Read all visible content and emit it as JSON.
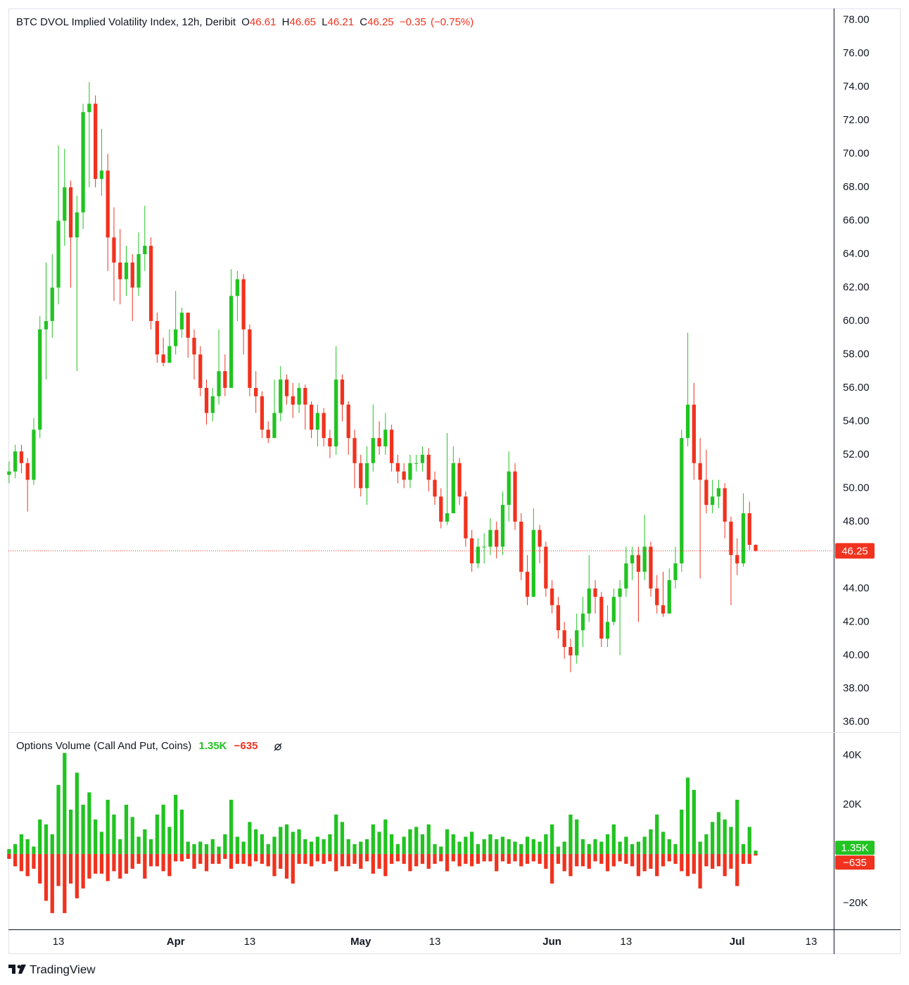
{
  "brand": "TradingView",
  "chart_data": {
    "type": "candlestick",
    "title": "BTC DVOL Implied Volatility Index, 12h, Deribit",
    "ohlc_labels": [
      "O",
      "H",
      "L",
      "C"
    ],
    "change": {
      "value": -0.35,
      "label": "−0.35"
    },
    "change_pct": {
      "value": -0.75,
      "label": "(−0.75%)"
    },
    "up_color": "#22c322",
    "down_color": "#f0321e",
    "last_price_line": true,
    "grid": false,
    "open": [
      50.8,
      51.0,
      52.2,
      51.5,
      50.5,
      53.5,
      59.5,
      60.0,
      62.0,
      66.0,
      68.0,
      65.0,
      66.5,
      72.5,
      73.0,
      68.5,
      69.0,
      65.0,
      63.5,
      62.5,
      63.5,
      62.0,
      64.0,
      64.5,
      60.0,
      58.0,
      57.5,
      58.5,
      59.5,
      60.5,
      59.0,
      58.0,
      56.0,
      54.5,
      55.5,
      57.0,
      56.0,
      61.5,
      62.5,
      59.5,
      56.0,
      55.5,
      53.5,
      53.0,
      54.5,
      56.5,
      55.5,
      55.0,
      56.0,
      55.0,
      53.5,
      54.5,
      53.0,
      52.5,
      56.5,
      55.0,
      53.0,
      51.5,
      50.0,
      51.5,
      53.0,
      52.5,
      53.5,
      51.5,
      51.0,
      50.5,
      51.5,
      51.5,
      52.0,
      50.5,
      49.5,
      48.0,
      48.5,
      51.5,
      49.5,
      47.0,
      45.5,
      46.5,
      46.5,
      47.5,
      46.5,
      49.0,
      51.0,
      48.0,
      45.0,
      43.5,
      47.5,
      46.5,
      44.0,
      43.0,
      41.5,
      40.5,
      40.0,
      41.5,
      42.5,
      44.0,
      43.5,
      41.0,
      42.0,
      43.5,
      44.0,
      45.5,
      46.0,
      45.0,
      46.5,
      44.0,
      43.0,
      42.5,
      44.5,
      45.5,
      53.0,
      55.0,
      51.5,
      50.5,
      49.0,
      49.5,
      50.0,
      48.0,
      46.0,
      45.5,
      48.5,
      46.61
    ],
    "high": [
      51.6,
      52.6,
      52.6,
      51.8,
      54.2,
      60.3,
      63.5,
      64.0,
      70.5,
      70.3,
      68.4,
      67.5,
      73.0,
      74.3,
      73.5,
      71.5,
      70.0,
      66.8,
      65.5,
      64.5,
      64.0,
      65.3,
      66.9,
      65.0,
      60.5,
      59.0,
      59.5,
      61.8,
      60.8,
      60.5,
      59.5,
      58.5,
      56.5,
      56.0,
      59.5,
      58.0,
      63.1,
      63.0,
      62.8,
      59.8,
      57.0,
      55.8,
      54.0,
      56.5,
      57.3,
      56.8,
      56.3,
      56.3,
      56.2,
      55.2,
      55.0,
      54.8,
      53.5,
      58.5,
      56.8,
      55.2,
      53.5,
      52.0,
      52.5,
      55.0,
      54.0,
      54.5,
      53.8,
      52.0,
      51.5,
      52.0,
      52.0,
      52.5,
      52.4,
      51.0,
      50.0,
      53.3,
      52.5,
      51.8,
      49.8,
      47.5,
      47.0,
      47.3,
      48.2,
      48.0,
      49.8,
      52.2,
      51.5,
      48.5,
      46.0,
      48.8,
      47.8,
      46.8,
      44.5,
      43.5,
      42.0,
      41.0,
      42.5,
      43.5,
      46.0,
      44.5,
      43.8,
      43.0,
      44.0,
      44.5,
      46.5,
      46.5,
      46.5,
      48.4,
      46.8,
      44.8,
      45.0,
      45.2,
      46.5,
      53.5,
      59.3,
      56.3,
      53.0,
      52.3,
      50.5,
      50.5,
      50.3,
      48.3,
      47.0,
      49.7,
      49.2,
      46.65
    ],
    "low": [
      50.3,
      50.6,
      50.9,
      48.6,
      50.2,
      53.0,
      56.5,
      59.0,
      61.0,
      64.5,
      62.0,
      57.0,
      65.5,
      68.0,
      68.0,
      67.5,
      63.0,
      61.2,
      61.0,
      61.5,
      60.0,
      61.5,
      63.0,
      59.5,
      57.5,
      57.3,
      57.5,
      58.0,
      59.0,
      57.8,
      56.5,
      55.5,
      53.8,
      54.0,
      55.0,
      55.5,
      56.0,
      60.0,
      58.0,
      55.5,
      54.5,
      53.0,
      52.7,
      53.0,
      54.0,
      55.0,
      54.2,
      54.5,
      53.5,
      53.0,
      52.5,
      52.5,
      51.8,
      52.0,
      54.0,
      52.0,
      50.0,
      49.5,
      49.0,
      51.0,
      52.0,
      52.0,
      51.0,
      50.3,
      50.0,
      50.0,
      51.0,
      51.0,
      49.8,
      49.0,
      47.6,
      47.8,
      48.5,
      49.0,
      46.5,
      45.0,
      45.2,
      45.5,
      46.0,
      45.8,
      46.0,
      48.0,
      47.5,
      44.5,
      43.0,
      43.5,
      45.5,
      43.5,
      42.5,
      41.0,
      39.8,
      39.0,
      39.5,
      40.5,
      42.0,
      42.5,
      40.5,
      40.5,
      41.8,
      40.0,
      43.5,
      44.5,
      42.0,
      44.5,
      43.5,
      42.5,
      42.3,
      42.5,
      44.0,
      45.0,
      52.5,
      50.5,
      44.6,
      48.5,
      48.5,
      48.8,
      47.0,
      43.0,
      44.8,
      45.3,
      46.3,
      46.21
    ],
    "close": [
      51.0,
      52.2,
      51.5,
      50.5,
      53.5,
      59.5,
      60.0,
      62.0,
      66.0,
      68.0,
      65.0,
      66.5,
      72.5,
      73.0,
      68.5,
      69.0,
      65.0,
      63.5,
      62.5,
      63.5,
      62.0,
      64.0,
      64.5,
      60.0,
      58.0,
      57.5,
      58.5,
      59.5,
      60.5,
      59.0,
      58.0,
      56.0,
      54.5,
      55.5,
      57.0,
      56.0,
      61.5,
      62.5,
      59.5,
      56.0,
      55.5,
      53.5,
      53.0,
      54.5,
      56.5,
      55.5,
      55.0,
      56.0,
      55.0,
      53.5,
      54.5,
      53.0,
      52.5,
      56.5,
      55.0,
      53.0,
      51.5,
      50.0,
      51.5,
      53.0,
      52.5,
      53.5,
      51.5,
      51.0,
      50.5,
      51.5,
      51.5,
      52.0,
      50.5,
      49.5,
      48.0,
      48.5,
      51.5,
      49.5,
      47.0,
      45.5,
      46.5,
      46.5,
      47.5,
      46.5,
      49.0,
      51.0,
      48.0,
      45.0,
      43.5,
      47.5,
      46.5,
      44.0,
      43.0,
      41.5,
      40.5,
      40.0,
      41.5,
      42.5,
      44.0,
      43.5,
      41.0,
      42.0,
      43.5,
      44.0,
      45.5,
      46.0,
      45.0,
      46.5,
      44.0,
      43.0,
      42.5,
      44.5,
      45.5,
      53.0,
      55.0,
      51.5,
      50.5,
      49.0,
      49.5,
      50.0,
      48.0,
      46.0,
      45.5,
      48.5,
      46.61,
      46.25
    ],
    "ylim": [
      35.4,
      78.7
    ],
    "yticks": [
      {
        "value": 36,
        "label": "36.00"
      },
      {
        "value": 38,
        "label": "38.00"
      },
      {
        "value": 40,
        "label": "40.00"
      },
      {
        "value": 42,
        "label": "42.00"
      },
      {
        "value": 44,
        "label": "44.00"
      },
      {
        "value": 46,
        "label": "46.00"
      },
      {
        "value": 48,
        "label": "48.00"
      },
      {
        "value": 50,
        "label": "50.00"
      },
      {
        "value": 52,
        "label": "52.00"
      },
      {
        "value": 54,
        "label": "54.00"
      },
      {
        "value": 56,
        "label": "56.00"
      },
      {
        "value": 58,
        "label": "58.00"
      },
      {
        "value": 60,
        "label": "60.00"
      },
      {
        "value": 62,
        "label": "62.00"
      },
      {
        "value": 64,
        "label": "64.00"
      },
      {
        "value": 66,
        "label": "66.00"
      },
      {
        "value": 68,
        "label": "68.00"
      },
      {
        "value": 70,
        "label": "70.00"
      },
      {
        "value": 72,
        "label": "72.00"
      },
      {
        "value": 74,
        "label": "74.00"
      },
      {
        "value": 76,
        "label": "76.00"
      },
      {
        "value": 78,
        "label": "78.00"
      }
    ],
    "xlim": [
      -0.1,
      133.65
    ],
    "xticks": [
      {
        "value": 8,
        "label": "13"
      },
      {
        "value": 27,
        "label": "Apr"
      },
      {
        "value": 39,
        "label": "13"
      },
      {
        "value": 57,
        "label": "May"
      },
      {
        "value": 69,
        "label": "13"
      },
      {
        "value": 88,
        "label": "Jun"
      },
      {
        "value": 100,
        "label": "13"
      },
      {
        "value": 118,
        "label": "Jul"
      },
      {
        "value": 130,
        "label": "13"
      }
    ],
    "volume": {
      "type": "bar",
      "title": "Options Volume (Call And Put, Coins)",
      "ylim": [
        -30600,
        49400
      ],
      "yticks": [
        {
          "value": -20000,
          "label": "−20K"
        },
        {
          "value": 20000,
          "label": "20K"
        },
        {
          "value": 40000,
          "label": "40K"
        }
      ],
      "series": [
        {
          "color": "#22c322",
          "last_value_label": "1.35K",
          "values": [
            2000,
            4000,
            8000,
            6000,
            3000,
            14000,
            12000,
            8000,
            28000,
            41000,
            18000,
            33000,
            20000,
            25000,
            14000,
            9000,
            22000,
            16000,
            6000,
            20000,
            15000,
            7000,
            10000,
            6000,
            16000,
            20000,
            11000,
            24000,
            18000,
            5000,
            4000,
            5000,
            4000,
            6000,
            3000,
            8000,
            22000,
            7000,
            5000,
            13000,
            10000,
            8000,
            4000,
            7000,
            11000,
            12000,
            9000,
            10000,
            6000,
            5000,
            7000,
            6000,
            8000,
            16000,
            13000,
            6000,
            4000,
            5000,
            6000,
            12000,
            9000,
            14000,
            8000,
            4000,
            7000,
            10000,
            11000,
            8000,
            12000,
            4000,
            3000,
            10000,
            8000,
            5000,
            7000,
            9000,
            4000,
            6000,
            8000,
            6000,
            7000,
            6000,
            5000,
            4000,
            7000,
            6000,
            5000,
            8000,
            12000,
            3000,
            5000,
            16000,
            14000,
            6000,
            4000,
            6000,
            5000,
            8000,
            12000,
            5000,
            7000,
            4000,
            5000,
            7000,
            10000,
            16000,
            9000,
            6000,
            4000,
            18000,
            31000,
            26000,
            5000,
            8000,
            13000,
            17000,
            14000,
            11000,
            22000,
            4000,
            11000,
            1350
          ]
        },
        {
          "color": "#f0321e",
          "last_value_label": "−635",
          "values": [
            -2000,
            -5000,
            -7000,
            -9000,
            -6000,
            -12000,
            -19000,
            -24000,
            -13000,
            -24000,
            -12000,
            -18000,
            -14000,
            -10000,
            -8000,
            -8000,
            -11000,
            -7000,
            -10000,
            -8000,
            -6000,
            -4000,
            -10000,
            -5000,
            -5000,
            -7000,
            -9000,
            -3000,
            -3000,
            -2000,
            -6000,
            -4000,
            -7000,
            -4000,
            -4000,
            -2000,
            -6000,
            -4000,
            -4000,
            -5000,
            -3000,
            -4000,
            -5000,
            -9000,
            -6000,
            -10000,
            -12000,
            -4000,
            -4000,
            -5000,
            -3000,
            -4000,
            -3000,
            -7000,
            -5000,
            -5000,
            -4000,
            -6000,
            -3000,
            -8000,
            -6000,
            -9000,
            -4000,
            -3000,
            -4000,
            -7000,
            -5000,
            -4000,
            -6000,
            -4000,
            -3000,
            -7000,
            -3000,
            -5000,
            -4000,
            -5000,
            -4000,
            -3000,
            -3000,
            -7000,
            -3000,
            -4000,
            -3000,
            -5000,
            -4000,
            -3000,
            -4000,
            -6000,
            -12000,
            -4000,
            -7000,
            -9000,
            -5000,
            -5000,
            -6000,
            -3000,
            -4000,
            -7000,
            -5000,
            -3000,
            -4000,
            -5000,
            -9000,
            -7000,
            -6000,
            -9000,
            -5000,
            -3000,
            -4000,
            -7000,
            -9000,
            -8000,
            -14000,
            -5000,
            -6000,
            -5000,
            -9000,
            -6000,
            -13000,
            -4000,
            -4000,
            -635
          ]
        }
      ]
    }
  }
}
